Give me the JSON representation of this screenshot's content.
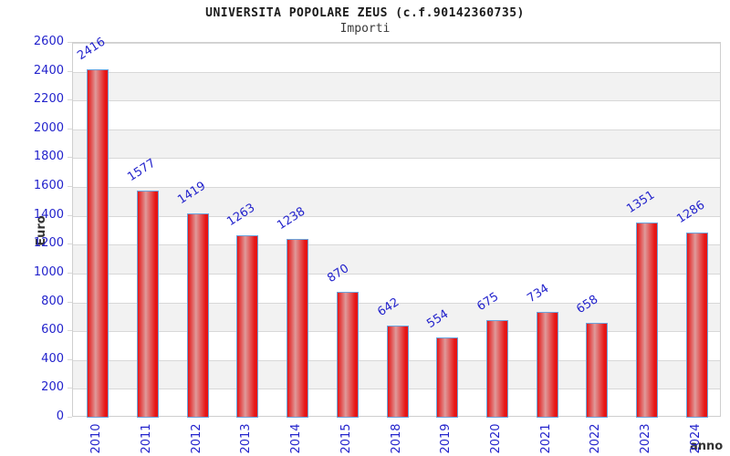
{
  "chart_data": {
    "type": "bar",
    "title": "UNIVERSITA POPOLARE ZEUS (c.f.90142360735)",
    "subtitle": "Importi",
    "xlabel": "anno",
    "ylabel": "Euro",
    "categories": [
      "2010",
      "2011",
      "2012",
      "2013",
      "2014",
      "2015",
      "2018",
      "2019",
      "2020",
      "2021",
      "2022",
      "2023",
      "2024"
    ],
    "values": [
      2416,
      1577,
      1419,
      1263,
      1238,
      870,
      642,
      554,
      675,
      734,
      658,
      1351,
      1286
    ],
    "ylim": [
      0,
      2600
    ],
    "ytick_step": 200,
    "grid": true,
    "legend": "none",
    "colors": {
      "tick_label": "#2323cc",
      "value_label": "#2323cc",
      "bar_edge_red": "#e61515",
      "bar_center_light": "#df9a9a",
      "bar_border": "#6ba3dc",
      "band_gray": "#f2f2f2",
      "gridline": "#d8d8d8",
      "frame": "#cfcfcf",
      "title_text": "#1a1a1a",
      "axis_label_text": "#333333"
    }
  }
}
